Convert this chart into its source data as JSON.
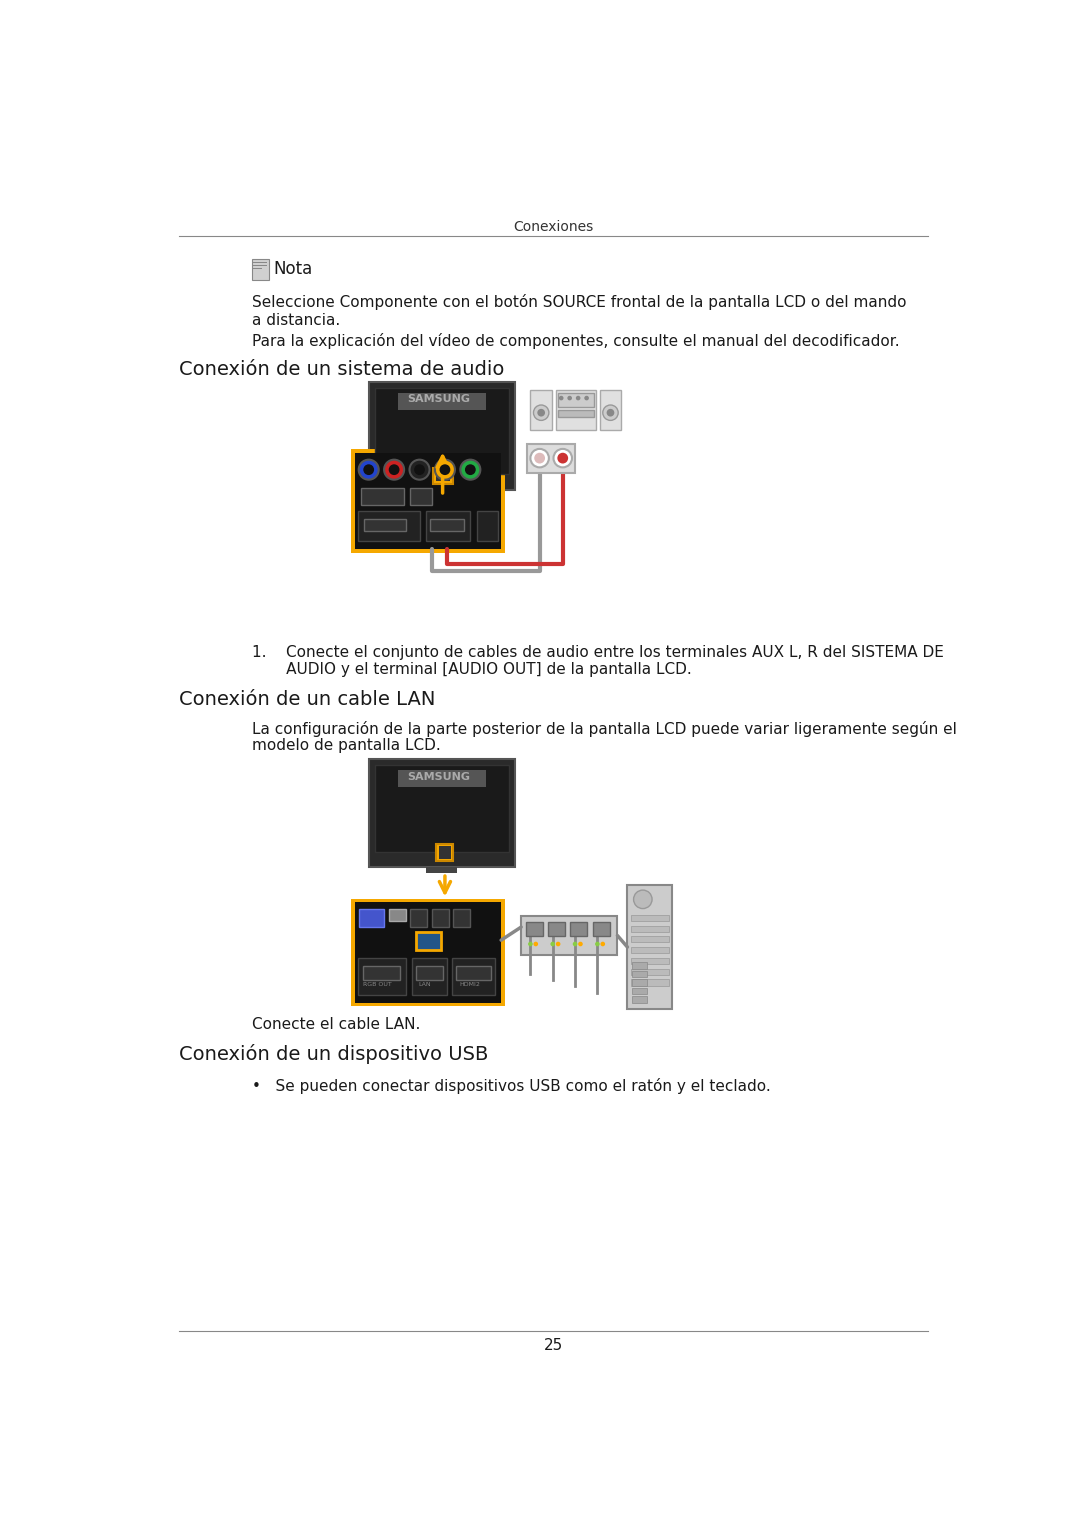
{
  "page_title": "Conexiones",
  "page_number": "25",
  "bg_color": "#ffffff",
  "text_color": "#1a1a1a",
  "note_text": "Nota",
  "body_text_1": "Seleccione Componente con el botón SOURCE frontal de la pantalla LCD o del mando\na distancia.",
  "body_text_2": "Para la explicación del vídeo de componentes, consulte el manual del decodificador.",
  "section1_title": "Conexión de un sistema de audio",
  "section1_step1": "1.    Conecte el conjunto de cables de audio entre los terminales AUX L, R del SISTEMA DE",
  "section1_step2": "       AUDIO y el terminal [AUDIO OUT] de la pantalla LCD.",
  "section2_title": "Conexión de un cable LAN",
  "section2_text1": "La configuración de la parte posterior de la pantalla LCD puede variar ligeramente según el",
  "section2_text2": "modelo de pantalla LCD.",
  "section2_caption": "Conecte el cable LAN.",
  "section3_title": "Conexión de un dispositivo USB",
  "section3_bullet": "Se pueden conectar dispositivos USB como el ratón y el teclado.",
  "orange_color": "#F5A800",
  "red_color": "#CC2222",
  "blue_color": "#2244CC",
  "green_color": "#22AA44",
  "samsung_gray": "#888888"
}
